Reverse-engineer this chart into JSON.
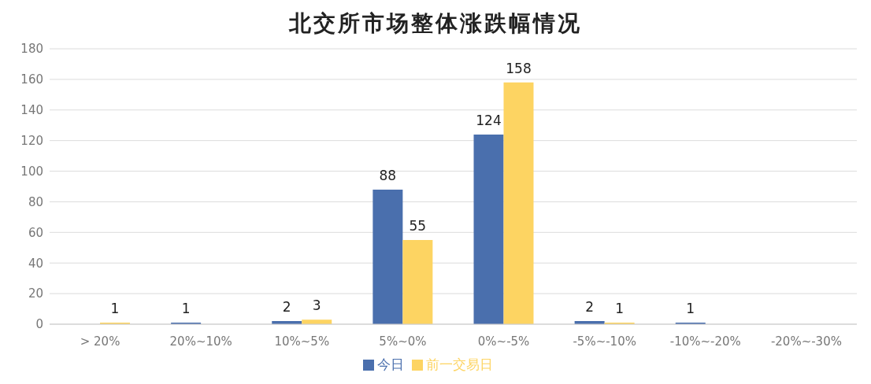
{
  "chart_data": {
    "type": "bar",
    "title": "北交所市场整体涨跌幅情况",
    "categories": [
      "> 20%",
      "20%~10%",
      "10%~5%",
      "5%~0%",
      "0%~-5%",
      "-5%~-10%",
      "-10%~-20%",
      "-20%~-30%"
    ],
    "series": [
      {
        "name": "今日",
        "color": "#4a6fad",
        "values": [
          null,
          1,
          2,
          88,
          124,
          2,
          1,
          null
        ]
      },
      {
        "name": "前一交易日",
        "color": "#fdd462",
        "values": [
          1,
          null,
          3,
          55,
          158,
          1,
          null,
          null
        ]
      }
    ],
    "ylim": [
      0,
      180
    ],
    "yticks": [
      0,
      20,
      40,
      60,
      80,
      100,
      120,
      140,
      160,
      180
    ],
    "grid": "y",
    "legend": "bottom",
    "data_labels": true
  }
}
